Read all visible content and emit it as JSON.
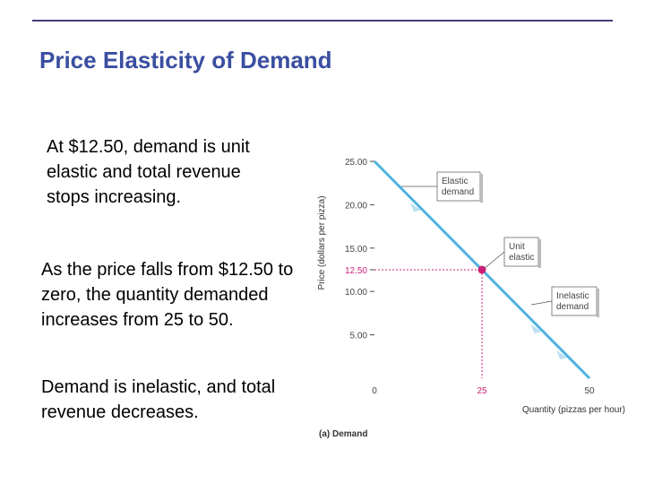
{
  "slide": {
    "title": "Price Elasticity of Demand",
    "bullets": [
      "At $12.50, demand is unit elastic and total revenue stops increasing.",
      "As the price falls from $12.50 to zero, the quantity demanded increases from 25 to 50.",
      "Demand is inelastic, and total revenue decreases."
    ]
  },
  "chart_data": {
    "type": "line",
    "caption": "(a) Demand",
    "xlabel": "Quantity (pizzas per hour)",
    "ylabel": "Price (dollars per pizza)",
    "xlim": [
      0,
      50
    ],
    "ylim": [
      0,
      25
    ],
    "y_ticks": [
      "25.00",
      "20.00",
      "15.00",
      "12.50",
      "10.00",
      "5.00"
    ],
    "y_tick_values": [
      25,
      20,
      15,
      12.5,
      10,
      5
    ],
    "x_ticks": [
      "0",
      "25",
      "50"
    ],
    "x_tick_values": [
      0,
      25,
      50
    ],
    "series": [
      {
        "x": [
          0,
          50
        ],
        "y": [
          25,
          0
        ]
      }
    ],
    "highlight_point": {
      "x": 25,
      "y": 12.5
    },
    "callouts": [
      {
        "lines": [
          "Elastic",
          "demand"
        ]
      },
      {
        "lines": [
          "Unit",
          "elastic"
        ]
      },
      {
        "lines": [
          "Inelastic",
          "demand"
        ]
      }
    ],
    "colors": {
      "line": "#4fb3e0",
      "highlight": "#cc1e78",
      "highlight_tick": "#cc1e78"
    }
  }
}
